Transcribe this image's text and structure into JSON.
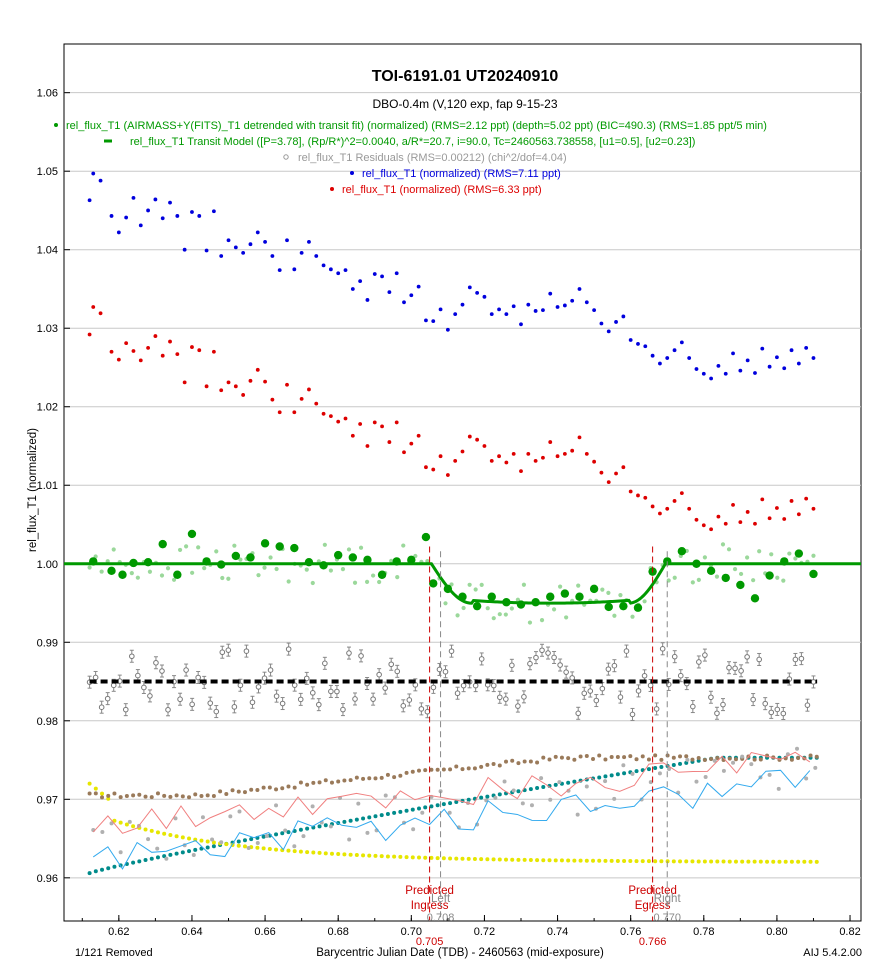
{
  "chart_data": {
    "type": "scatter",
    "title": "TOI-6191.01  UT20240910",
    "subtitle": "DBO-0.4m (V,120 exp, fap 9-15-23",
    "xlabel": "Barycentric Julian Date (TDB) - 2460563 (mid-exposure)",
    "ylabel": "rel_flux_T1 (normalized)",
    "xlim": [
      0.605,
      0.823
    ],
    "ylim": [
      0.9545,
      1.0662
    ],
    "x_ticks": [
      "0.62",
      "0.64",
      "0.66",
      "0.68",
      "0.70",
      "0.72",
      "0.74",
      "0.76",
      "0.78",
      "0.80",
      "0.82"
    ],
    "y_ticks": [
      "0.96",
      "0.97",
      "0.98",
      "0.99",
      "1.00",
      "1.01",
      "1.02",
      "1.03",
      "1.04",
      "1.05",
      "1.06"
    ],
    "grid": "horizontal",
    "legend": [
      {
        "label": "rel_flux_T1 (AIRMASS+Y(FITS)_T1 detrended with transit fit) (normalized) (RMS=2.12 ppt) (depth=5.02 ppt) (BIC=490.3) (RMS=1.85 ppt/5 min)",
        "color": "#009900",
        "marker": "dot"
      },
      {
        "label": "rel_flux_T1 Transit Model ([P=3.78], (Rp/R*)^2=0.0040, a/R*=20.7, i=90.0, Tc=2460563.738558, [u1=0.5], [u2=0.23])",
        "color": "#009900",
        "marker": "line"
      },
      {
        "label": "rel_flux_T1 Residuals (RMS=0.00212) (chi^2/dof=4.04)",
        "color": "#999999",
        "marker": "circle"
      },
      {
        "label": "rel_flux_T1 (normalized) (RMS=7.11 ppt)",
        "color": "#0000dd",
        "marker": "dot"
      },
      {
        "label": "rel_flux_T1 (normalized) (RMS=6.33 ppt)",
        "color": "#dd0000",
        "marker": "dot"
      }
    ],
    "markers": {
      "ingress": {
        "x": 0.705,
        "label1": "Predicted",
        "label2": "Ingress",
        "value": "0.705"
      },
      "egress": {
        "x": 0.766,
        "label1": "Predicted",
        "label2": "Egress",
        "value": "0.766"
      },
      "left": {
        "x": 0.708,
        "label": "Left",
        "value": "0.708"
      },
      "right": {
        "x": 0.77,
        "label": "Right",
        "value": "0.770"
      }
    },
    "model": {
      "baseline": 1.0,
      "depth": 0.00502,
      "t1": 0.7055,
      "t2": 0.7165,
      "t3": 0.7595,
      "t4": 0.7695,
      "residual_offset": 0.985
    },
    "series": [
      {
        "name": "blue",
        "color": "#0000dd",
        "x": [
          0.612,
          0.613,
          0.615,
          0.618,
          0.62,
          0.622,
          0.624,
          0.626,
          0.628,
          0.63,
          0.632,
          0.634,
          0.636,
          0.638,
          0.64,
          0.642,
          0.644,
          0.646,
          0.648,
          0.65,
          0.652,
          0.654,
          0.656,
          0.658,
          0.66,
          0.662,
          0.664,
          0.666,
          0.668,
          0.67,
          0.672,
          0.674,
          0.676,
          0.678,
          0.68,
          0.682,
          0.684,
          0.686,
          0.688,
          0.69,
          0.692,
          0.694,
          0.696,
          0.698,
          0.7,
          0.702,
          0.704,
          0.706,
          0.708,
          0.71,
          0.712,
          0.714,
          0.716,
          0.718,
          0.72,
          0.722,
          0.724,
          0.726,
          0.728,
          0.73,
          0.732,
          0.734,
          0.736,
          0.738,
          0.74,
          0.742,
          0.744,
          0.746,
          0.748,
          0.75,
          0.752,
          0.754,
          0.756,
          0.758,
          0.76,
          0.762,
          0.764,
          0.766,
          0.768,
          0.77,
          0.772,
          0.774,
          0.776,
          0.778,
          0.78,
          0.782,
          0.784,
          0.786,
          0.788,
          0.79,
          0.792,
          0.794,
          0.796,
          0.798,
          0.8,
          0.802,
          0.804,
          0.806,
          0.808,
          0.81
        ],
        "y": [
          1.0463,
          1.0497,
          1.0488,
          1.0443,
          1.0422,
          1.0441,
          1.0466,
          1.0431,
          1.045,
          1.0464,
          1.044,
          1.046,
          1.0443,
          1.04,
          1.0448,
          1.0443,
          1.0399,
          1.0449,
          1.0392,
          1.0412,
          1.0403,
          1.0396,
          1.0407,
          1.0422,
          1.041,
          1.0392,
          1.0374,
          1.0412,
          1.0375,
          1.0396,
          1.041,
          1.0392,
          1.038,
          1.0375,
          1.037,
          1.0374,
          1.035,
          1.036,
          1.0336,
          1.0369,
          1.0366,
          1.0346,
          1.037,
          1.0333,
          1.0342,
          1.0353,
          1.031,
          1.0309,
          1.0324,
          1.0298,
          1.0318,
          1.033,
          1.0352,
          1.0345,
          1.034,
          1.0318,
          1.0324,
          1.0318,
          1.0328,
          1.0305,
          1.033,
          1.0322,
          1.0323,
          1.0344,
          1.0327,
          1.0329,
          1.0335,
          1.035,
          1.0333,
          1.0323,
          1.0306,
          1.0296,
          1.0308,
          1.0315,
          1.0285,
          1.028,
          1.0277,
          1.0265,
          1.0255,
          1.0262,
          1.0272,
          1.0282,
          1.0262,
          1.0248,
          1.0242,
          1.0236,
          1.0252,
          1.0242,
          1.0268,
          1.0246,
          1.0259,
          1.0243,
          1.0274,
          1.0251,
          1.0263,
          1.0249,
          1.0272,
          1.0255,
          1.0275,
          1.0262
        ]
      },
      {
        "name": "red",
        "color": "#dd0000",
        "x": [
          0.612,
          0.613,
          0.615,
          0.618,
          0.62,
          0.622,
          0.624,
          0.626,
          0.628,
          0.63,
          0.632,
          0.634,
          0.636,
          0.638,
          0.64,
          0.642,
          0.644,
          0.646,
          0.648,
          0.65,
          0.652,
          0.654,
          0.656,
          0.658,
          0.66,
          0.662,
          0.664,
          0.666,
          0.668,
          0.67,
          0.672,
          0.674,
          0.676,
          0.678,
          0.68,
          0.682,
          0.684,
          0.686,
          0.688,
          0.69,
          0.692,
          0.694,
          0.696,
          0.698,
          0.7,
          0.702,
          0.704,
          0.706,
          0.708,
          0.71,
          0.712,
          0.714,
          0.716,
          0.718,
          0.72,
          0.722,
          0.724,
          0.726,
          0.728,
          0.73,
          0.732,
          0.734,
          0.736,
          0.738,
          0.74,
          0.742,
          0.744,
          0.746,
          0.748,
          0.75,
          0.752,
          0.754,
          0.756,
          0.758,
          0.76,
          0.762,
          0.764,
          0.766,
          0.768,
          0.77,
          0.772,
          0.774,
          0.776,
          0.778,
          0.78,
          0.782,
          0.784,
          0.786,
          0.788,
          0.79,
          0.792,
          0.794,
          0.796,
          0.798,
          0.8,
          0.802,
          0.804,
          0.806,
          0.808,
          0.81
        ],
        "y": [
          1.0292,
          1.0327,
          1.0319,
          1.027,
          1.026,
          1.0281,
          1.0271,
          1.0259,
          1.0275,
          1.029,
          1.0265,
          1.0283,
          1.0267,
          1.0231,
          1.0276,
          1.0272,
          1.0226,
          1.027,
          1.0221,
          1.0231,
          1.0226,
          1.0215,
          1.0233,
          1.0247,
          1.0232,
          1.0209,
          1.0193,
          1.0228,
          1.0193,
          1.021,
          1.0222,
          1.0204,
          1.0191,
          1.0188,
          1.0181,
          1.0185,
          1.0163,
          1.0178,
          1.015,
          1.018,
          1.0175,
          1.0155,
          1.018,
          1.0142,
          1.0153,
          1.0163,
          1.0123,
          1.012,
          1.0137,
          1.0113,
          1.0131,
          1.0143,
          1.0162,
          1.0158,
          1.015,
          1.0131,
          1.0137,
          1.0129,
          1.014,
          1.0118,
          1.014,
          1.0131,
          1.0135,
          1.0155,
          1.0137,
          1.014,
          1.0144,
          1.0161,
          1.014,
          1.013,
          1.0116,
          1.0104,
          1.0115,
          1.0123,
          1.0092,
          1.0087,
          1.0084,
          1.0073,
          1.0064,
          1.007,
          1.008,
          1.009,
          1.007,
          1.0056,
          1.0049,
          1.0044,
          1.006,
          1.0051,
          1.0075,
          1.0053,
          1.0066,
          1.0051,
          1.0082,
          1.0058,
          1.0071,
          1.0057,
          1.008,
          1.0063,
          1.0083,
          1.007
        ]
      },
      {
        "name": "green",
        "color": "#009900",
        "x": [
          0.613,
          0.618,
          0.621,
          0.624,
          0.628,
          0.632,
          0.636,
          0.64,
          0.644,
          0.648,
          0.652,
          0.656,
          0.66,
          0.664,
          0.668,
          0.672,
          0.676,
          0.68,
          0.684,
          0.688,
          0.692,
          0.696,
          0.7,
          0.704,
          0.706,
          0.71,
          0.714,
          0.718,
          0.722,
          0.726,
          0.73,
          0.734,
          0.738,
          0.742,
          0.746,
          0.75,
          0.754,
          0.758,
          0.762,
          0.766,
          0.77,
          0.774,
          0.778,
          0.782,
          0.786,
          0.79,
          0.794,
          0.798,
          0.802,
          0.806,
          0.81
        ],
        "y": [
          1.0003,
          0.9991,
          0.9986,
          1.0001,
          1.0002,
          1.0025,
          0.9986,
          1.0038,
          1.0003,
          0.9999,
          1.001,
          1.0008,
          1.0026,
          1.0022,
          1.002,
          1.0002,
          0.9998,
          1.0011,
          1.0008,
          1.0005,
          0.9986,
          1.0003,
          1.0005,
          1.0034,
          0.9975,
          0.9968,
          0.9958,
          0.9946,
          0.9958,
          0.9951,
          0.9948,
          0.9951,
          0.9958,
          0.9962,
          0.9958,
          0.9968,
          0.9945,
          0.9946,
          0.9944,
          0.999,
          1.0003,
          1.0016,
          1.0,
          0.9991,
          0.9982,
          0.9973,
          0.9956,
          0.9985,
          1.0003,
          1.0013,
          0.9987
        ]
      }
    ]
  },
  "footer": {
    "removed": "1/121 Removed",
    "version": "AIJ 5.4.2.00"
  }
}
